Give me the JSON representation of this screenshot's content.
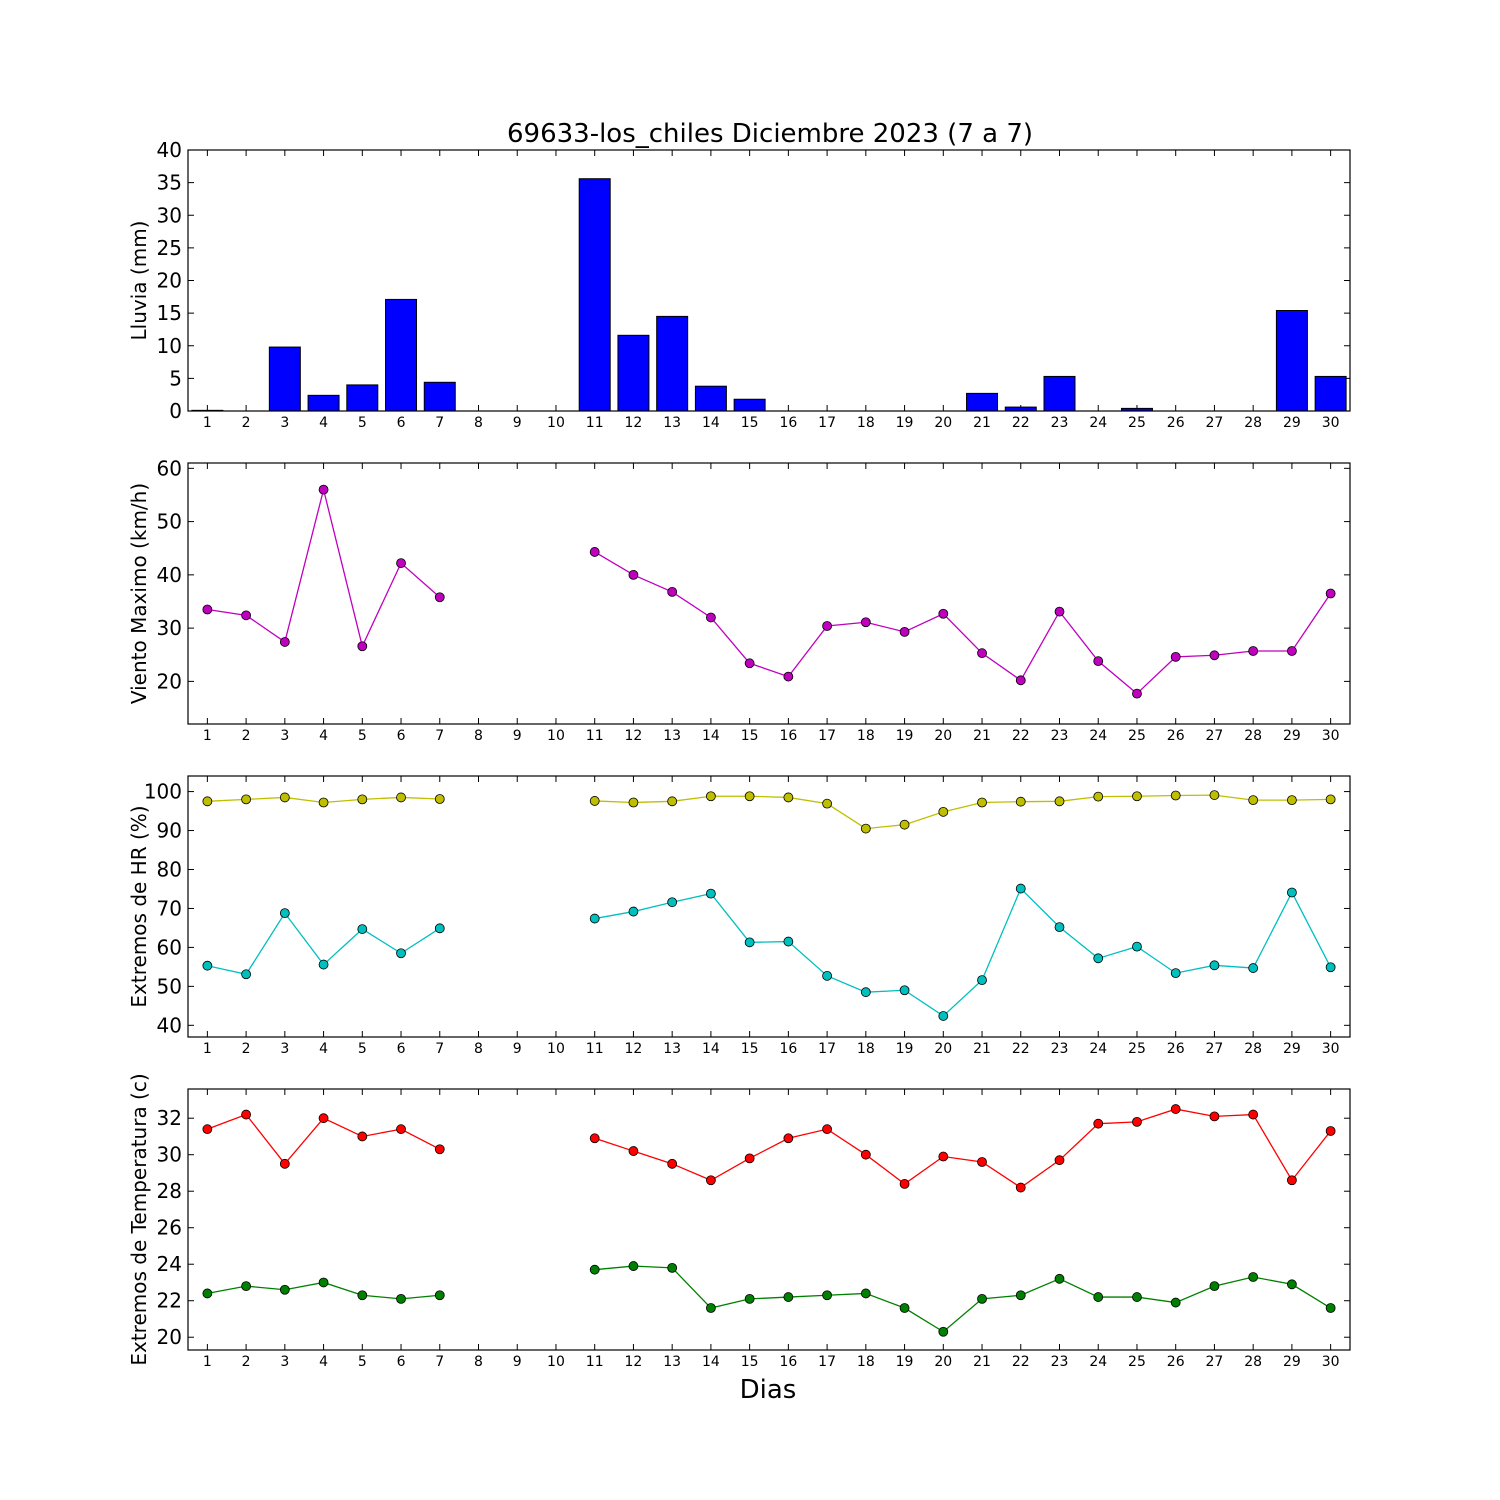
{
  "chart_data": {
    "title": "69633-los_chiles Diciembre 2023  (7 a 7)",
    "xlabel": "Dias",
    "days": [
      1,
      2,
      3,
      4,
      5,
      6,
      7,
      8,
      9,
      10,
      11,
      12,
      13,
      14,
      15,
      16,
      17,
      18,
      19,
      20,
      21,
      22,
      23,
      24,
      25,
      26,
      27,
      28,
      29,
      30
    ],
    "panels": [
      {
        "type": "bar",
        "ylabel": "Lluvia (mm)",
        "ylim": [
          0,
          40
        ],
        "yticks": [
          0,
          5,
          10,
          15,
          20,
          25,
          30,
          35,
          40
        ],
        "series": [
          {
            "color": "#0000ff",
            "values": [
              0.1,
              0,
              9.8,
              2.4,
              4.0,
              17.1,
              4.4,
              0,
              0,
              0,
              35.6,
              11.6,
              14.5,
              3.8,
              1.8,
              0,
              0,
              0,
              0,
              0,
              2.7,
              0.6,
              5.3,
              0,
              0.4,
              0,
              0,
              0,
              15.4,
              5.3
            ]
          }
        ]
      },
      {
        "type": "line",
        "ylabel": "Viento Maximo (km/h)",
        "ylim": [
          12,
          61
        ],
        "yticks": [
          20,
          30,
          40,
          50,
          60
        ],
        "series": [
          {
            "color": "#bf00bf",
            "values": [
              33.5,
              32.4,
              27.4,
              56.0,
              26.6,
              42.2,
              35.8,
              null,
              null,
              null,
              44.3,
              40.0,
              36.8,
              32.0,
              23.4,
              20.9,
              30.4,
              31.1,
              29.3,
              32.7,
              25.3,
              20.2,
              33.1,
              23.8,
              17.7,
              24.6,
              24.9,
              25.7,
              25.7,
              36.5
            ]
          }
        ]
      },
      {
        "type": "line",
        "ylabel": "Extremos de HR (%)",
        "ylim": [
          37,
          104
        ],
        "yticks": [
          40,
          50,
          60,
          70,
          80,
          90,
          100
        ],
        "series": [
          {
            "color": "#bfbf00",
            "values": [
              97.5,
              98.0,
              98.5,
              97.2,
              98.0,
              98.5,
              98.1,
              null,
              null,
              null,
              97.6,
              97.2,
              97.5,
              98.8,
              98.8,
              98.5,
              96.9,
              90.5,
              91.5,
              94.8,
              97.2,
              97.4,
              97.5,
              98.7,
              98.8,
              99.0,
              99.1,
              97.8,
              97.8,
              98.0
            ]
          },
          {
            "color": "#00bfbf",
            "values": [
              55.3,
              53.1,
              68.8,
              55.6,
              64.7,
              58.5,
              64.9,
              null,
              null,
              null,
              67.4,
              69.2,
              71.6,
              73.8,
              61.3,
              61.5,
              52.7,
              48.5,
              49.0,
              42.4,
              51.6,
              75.1,
              65.2,
              57.2,
              60.2,
              53.4,
              55.4,
              54.7,
              74.1,
              54.9
            ]
          }
        ]
      },
      {
        "type": "line",
        "ylabel": "Extremos de Temperatura (c)",
        "ylim": [
          19.3,
          33.6
        ],
        "yticks": [
          20,
          22,
          24,
          26,
          28,
          30,
          32
        ],
        "series": [
          {
            "color": "#ff0000",
            "values": [
              31.4,
              32.2,
              29.5,
              32.0,
              31.0,
              31.4,
              30.3,
              null,
              null,
              null,
              30.9,
              30.2,
              29.5,
              28.6,
              29.8,
              30.9,
              31.4,
              30.0,
              28.4,
              29.9,
              29.6,
              28.2,
              29.7,
              31.7,
              31.8,
              32.5,
              32.1,
              32.2,
              28.6,
              31.3
            ]
          },
          {
            "color": "#008000",
            "values": [
              22.4,
              22.8,
              22.6,
              23.0,
              22.3,
              22.1,
              22.3,
              null,
              null,
              null,
              23.7,
              23.9,
              23.8,
              21.6,
              22.1,
              22.2,
              22.3,
              22.4,
              21.6,
              20.3,
              22.1,
              22.3,
              23.2,
              22.2,
              22.2,
              21.9,
              22.8,
              23.3,
              22.9,
              21.6
            ]
          }
        ]
      }
    ]
  }
}
